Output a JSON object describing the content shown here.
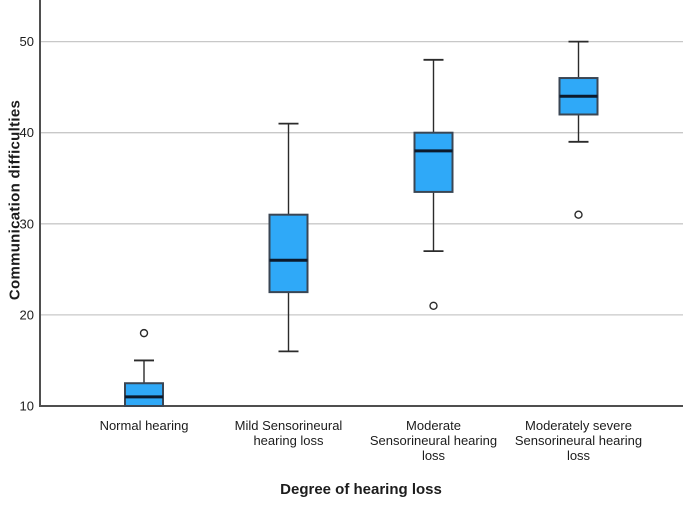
{
  "figure": {
    "background": "#ffffff"
  },
  "chart_data": {
    "type": "boxplot",
    "title": "",
    "xlabel": "Degree of hearing loss",
    "ylabel": "Communication difficulties",
    "ylim": [
      10,
      50
    ],
    "yticks": [
      10,
      20,
      30,
      40,
      50
    ],
    "grid": "horizontal gridlines at yticks above axis minimum",
    "legend": "none",
    "categories": [
      "Normal hearing",
      "Mild Sensorineural hearing loss",
      "Moderate Sensorineural hearing loss",
      "Moderately severe Sensorineural hearing loss"
    ],
    "category_label_lines": [
      [
        "Normal hearing"
      ],
      [
        "Mild Sensorineural",
        "hearing loss"
      ],
      [
        "Moderate",
        "Sensorineural hearing",
        "loss"
      ],
      [
        "Moderately severe",
        "Sensorineural hearing",
        "loss"
      ]
    ],
    "series": [
      {
        "category": "Normal hearing",
        "whisker_low": 10,
        "q1": 10,
        "median": 11,
        "q3": 12.5,
        "whisker_high": 15,
        "outliers": [
          18
        ]
      },
      {
        "category": "Mild Sensorineural hearing loss",
        "whisker_low": 16,
        "q1": 22.5,
        "median": 26,
        "q3": 31,
        "whisker_high": 41,
        "outliers": []
      },
      {
        "category": "Moderate Sensorineural hearing loss",
        "whisker_low": 27,
        "q1": 33.5,
        "median": 38,
        "q3": 40,
        "whisker_high": 48,
        "outliers": [
          21
        ]
      },
      {
        "category": "Moderately severe Sensorineural hearing loss",
        "whisker_low": 39,
        "q1": 42,
        "median": 44,
        "q3": 46,
        "whisker_high": 50,
        "outliers": [
          31
        ]
      }
    ],
    "colors": {
      "box_fill": "#2fa9f8",
      "box_border": "#3a4654",
      "median_line": "#0c1a2c",
      "whisker": "#2b2b2b",
      "axis_line": "#4f4f4f",
      "gridline": "#c8c8c8",
      "text": "#1c1c1c"
    }
  }
}
